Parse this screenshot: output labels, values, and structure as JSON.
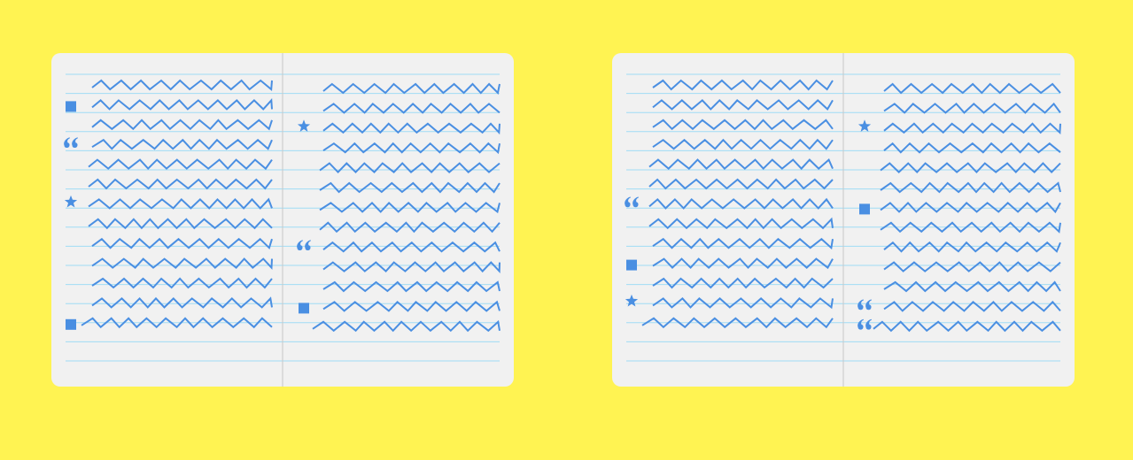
{
  "colors": {
    "background": "#fff352",
    "paper": "#f1f1f1",
    "rule_line": "#9fdcf5",
    "spine": "#c8c8c8",
    "ink": "#4a8fe2"
  },
  "notebooks": [
    {
      "left_page": {
        "rows": 13,
        "markers": [
          {
            "row": 1,
            "icon": "square-icon"
          },
          {
            "row": 3,
            "icon": "quote-icon"
          },
          {
            "row": 6,
            "icon": "star-icon"
          },
          {
            "row": 12,
            "icon": "square-icon"
          }
        ]
      },
      "right_page": {
        "rows": 13,
        "markers": [
          {
            "row": 2,
            "icon": "star-icon"
          },
          {
            "row": 8,
            "icon": "quote-icon"
          },
          {
            "row": 11,
            "icon": "square-icon"
          }
        ]
      }
    },
    {
      "left_page": {
        "rows": 13,
        "markers": [
          {
            "row": 6,
            "icon": "quote-icon"
          },
          {
            "row": 9,
            "icon": "square-icon"
          },
          {
            "row": 11,
            "icon": "star-icon"
          }
        ]
      },
      "right_page": {
        "rows": 13,
        "markers": [
          {
            "row": 2,
            "icon": "star-icon"
          },
          {
            "row": 6,
            "icon": "square-icon"
          },
          {
            "row": 11,
            "icon": "quote-icon"
          },
          {
            "row": 12,
            "icon": "quote-icon"
          }
        ]
      }
    }
  ]
}
